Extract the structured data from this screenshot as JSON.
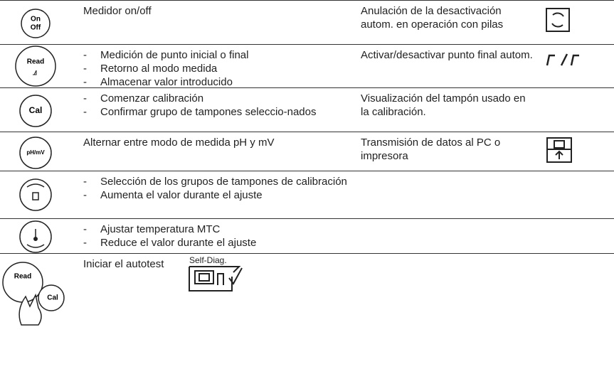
{
  "rows": [
    {
      "button": [
        "On",
        "Off"
      ],
      "function": [
        "Medidor on/off"
      ],
      "description": "Anulación de la desactivación autom. en operación con pilas"
    },
    {
      "button": [
        "Read"
      ],
      "function": [
        "Medición de punto inicial o final",
        "Retorno al modo medida",
        "Almacenar valor introducido"
      ],
      "description": "Activar/desactivar punto final autom."
    },
    {
      "button": [
        "Cal"
      ],
      "function": [
        "Comenzar calibración",
        "Confirmar grupo de tampones seleccio-nados"
      ],
      "description": "Visualización del tampón usado en la calibración."
    },
    {
      "button": [
        "pH/mV"
      ],
      "function": [
        "Alternar entre modo de medida pH y mV"
      ],
      "description": "Transmisión de datos al PC o impresora"
    },
    {
      "button": [],
      "function": [
        "Selección de los grupos de tampones de calibración",
        "Aumenta el valor durante el ajuste"
      ],
      "description": ""
    },
    {
      "button": [],
      "function": [
        "Ajustar temperatura MTC",
        "Reduce el valor durante el ajuste"
      ],
      "description": ""
    },
    {
      "button": [
        "Read",
        "Cal"
      ],
      "function": [
        "Iniciar el autotest"
      ],
      "description": "",
      "icon_label": "Self-Diag."
    }
  ]
}
